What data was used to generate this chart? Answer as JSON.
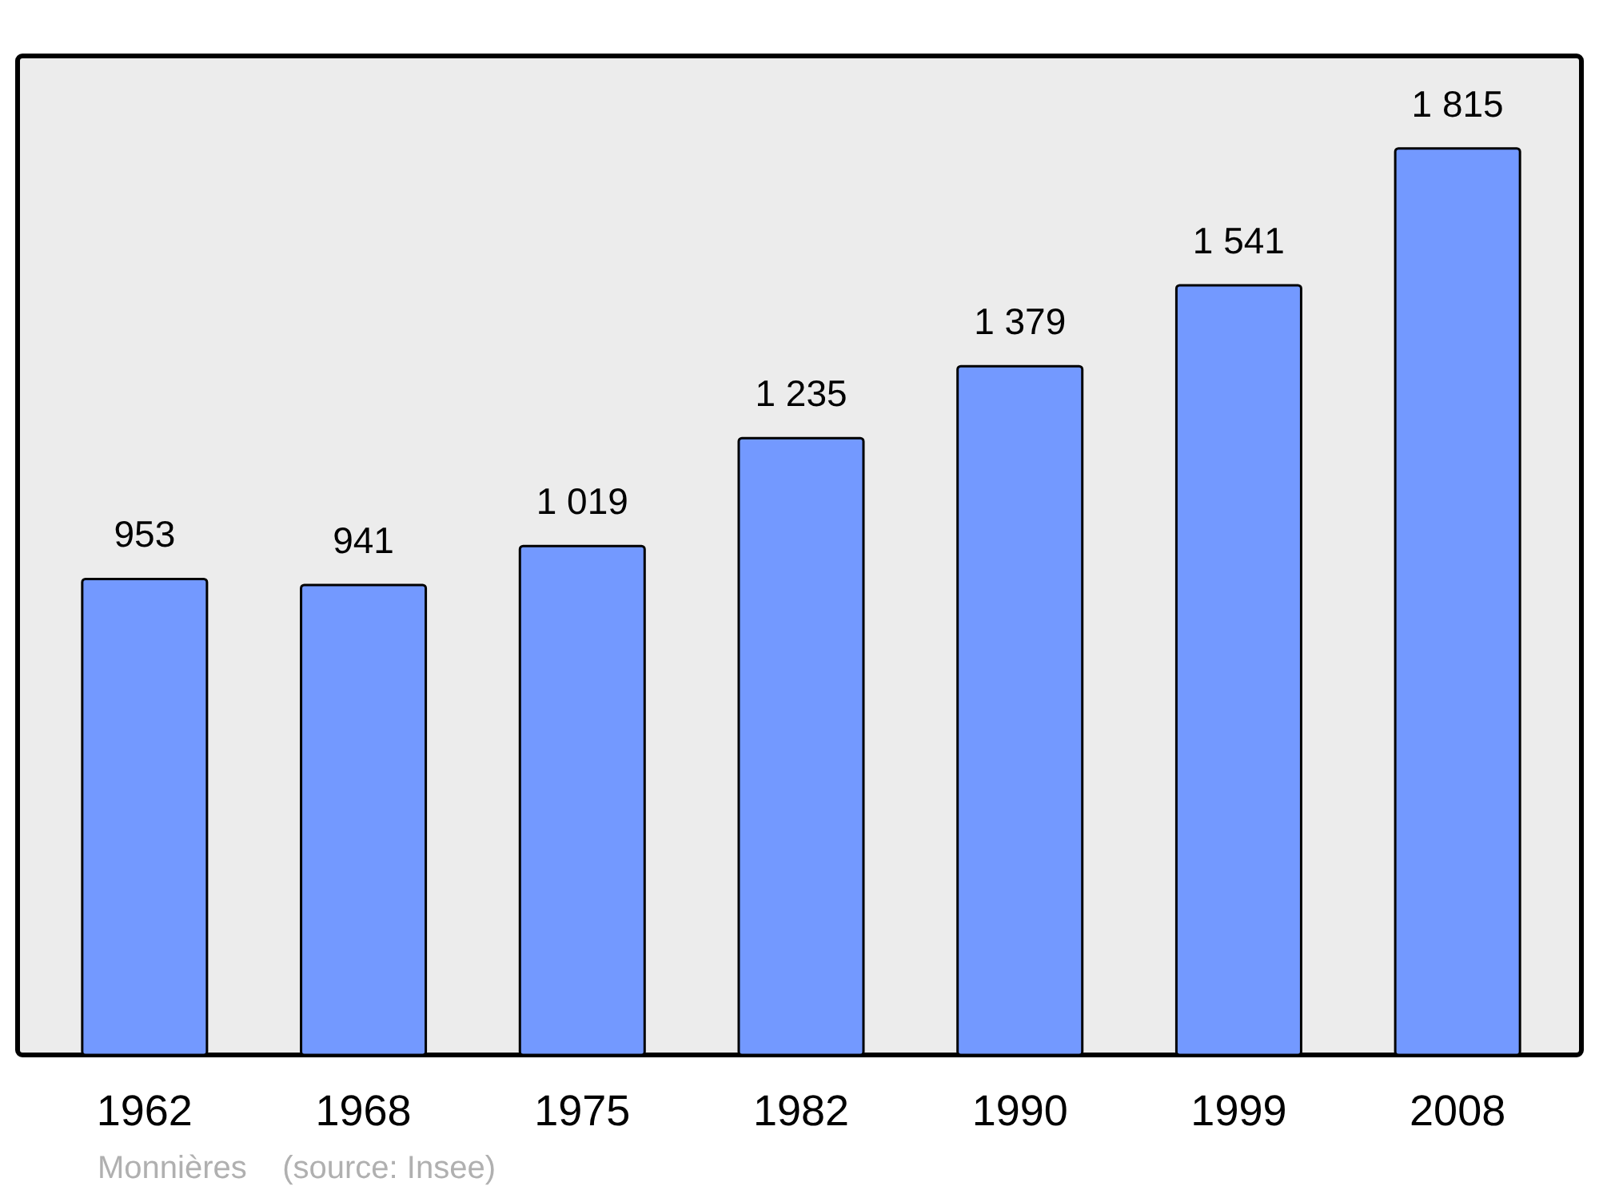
{
  "chart_data": {
    "type": "bar",
    "categories": [
      "1962",
      "1968",
      "1975",
      "1982",
      "1990",
      "1999",
      "2008"
    ],
    "values": [
      953,
      941,
      1019,
      1235,
      1379,
      1541,
      1815
    ],
    "value_labels": [
      "953",
      "941",
      "1 019",
      "1 235",
      "1 379",
      "1 541",
      "1 815"
    ],
    "color": "#7399ff",
    "ylim": [
      0,
      2000
    ],
    "annotations": [
      "Monnières    (source: Insee)"
    ]
  }
}
